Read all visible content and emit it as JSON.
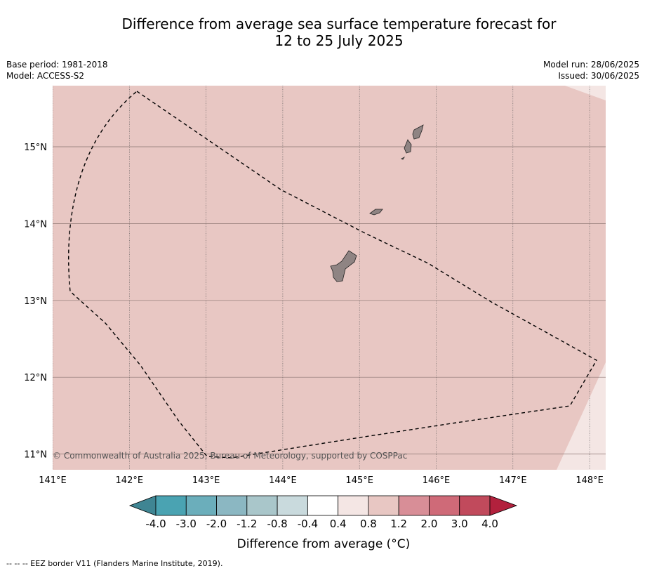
{
  "title": {
    "line1": "Difference from average sea surface temperature forecast for",
    "line2": "12 to 25 July 2025"
  },
  "meta": {
    "base_period": "Base period: 1981-2018",
    "model": "Model: ACCESS-S2",
    "model_run": "Model run: 28/06/2025",
    "issued": "Issued: 30/06/2025"
  },
  "map": {
    "lon_ticks": [
      "141°E",
      "142°E",
      "143°E",
      "144°E",
      "145°E",
      "146°E",
      "147°E",
      "148°E"
    ],
    "lat_ticks": [
      "15°N",
      "14°N",
      "13°N",
      "12°N",
      "11°N"
    ],
    "copyright": "© Commonwealth of Australia 2025, Bureau of Meteorology, supported by COSPPac",
    "main_fill_color": "#e8c7c3",
    "corner_fill_color": "#f4e6e4",
    "land_color": "#8f8483",
    "lon_values": [
      141,
      142,
      143,
      144,
      145,
      146,
      147,
      148
    ],
    "lat_values": [
      15,
      14,
      13,
      12,
      11
    ]
  },
  "colorbar": {
    "title": "Difference from average (°C)",
    "labels": [
      "-4.0",
      "-3.0",
      "-2.0",
      "-1.2",
      "-0.8",
      "-0.4",
      "0.4",
      "0.8",
      "1.2",
      "2.0",
      "3.0",
      "4.0"
    ],
    "low_extend_color": "#3f8593",
    "high_extend_color": "#b2213d",
    "colors": [
      "#4aa3b2",
      "#6baebb",
      "#8bb7c2",
      "#a9c6ca",
      "#c9dadd",
      "#ffffff",
      "#f4e6e4",
      "#e8c7c3",
      "#d88e97",
      "#cf6a78",
      "#c14a5c"
    ]
  },
  "footer": "--  --  -- EEZ border V11 (Flanders Marine Institute, 2019)."
}
